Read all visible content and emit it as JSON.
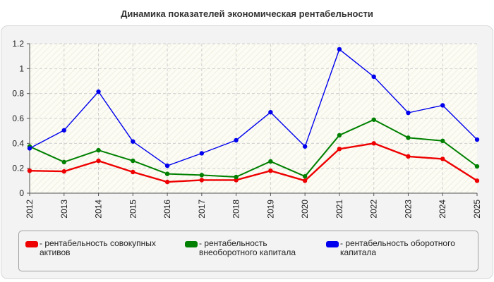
{
  "chart_data": {
    "type": "line",
    "title": "Динамика показателей экономическая рентабельности",
    "x": [
      "2012",
      "2013",
      "2014",
      "2015",
      "2016",
      "2017",
      "2018",
      "2019",
      "2020",
      "2021",
      "2022",
      "2023",
      "2024",
      "2025"
    ],
    "ylim": [
      0,
      1.2
    ],
    "yticks": [
      "0",
      "0.2",
      "0.4",
      "0.6",
      "0.8",
      "1",
      "1.2"
    ],
    "grid": true,
    "legend_position": "bottom",
    "series": [
      {
        "name": "- рентабельность совокупных активов",
        "color": "#ee0000",
        "values": [
          0.18,
          0.175,
          0.26,
          0.17,
          0.09,
          0.105,
          0.105,
          0.18,
          0.1,
          0.355,
          0.4,
          0.295,
          0.275,
          0.1
        ]
      },
      {
        "name": "- рентабельность внеоборотного капитала",
        "color": "#008000",
        "values": [
          0.375,
          0.25,
          0.345,
          0.26,
          0.155,
          0.145,
          0.13,
          0.255,
          0.135,
          0.465,
          0.59,
          0.445,
          0.42,
          0.215
        ]
      },
      {
        "name": "- рентабельность оборотного капитала",
        "color": "#0000ee",
        "values": [
          0.36,
          0.505,
          0.815,
          0.415,
          0.22,
          0.32,
          0.425,
          0.65,
          0.375,
          1.155,
          0.935,
          0.645,
          0.705,
          0.43
        ]
      }
    ]
  }
}
